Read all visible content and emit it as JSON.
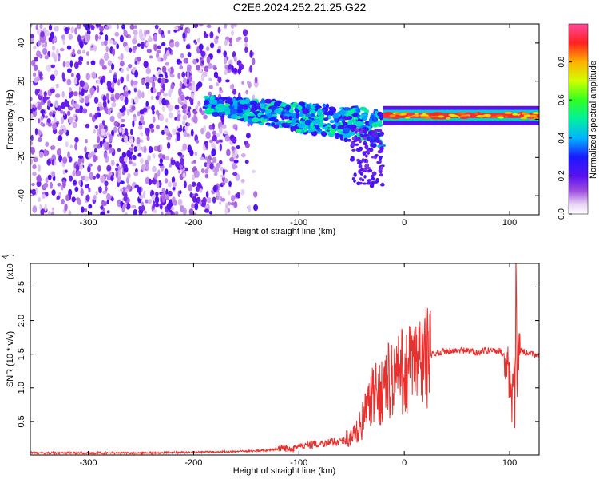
{
  "title": "C2E6.2024.252.21.25.G22",
  "chart_data": [
    {
      "type": "heatmap",
      "xlabel": "Height of straight line (km)",
      "ylabel": "Frequency (Hz)",
      "xlim": [
        -355,
        128
      ],
      "ylim": [
        -50,
        50
      ],
      "x_ticks": [
        -300,
        -200,
        -100,
        0,
        100
      ],
      "x_tick_labels": [
        "-300",
        "-200",
        "-100",
        "0",
        "100"
      ],
      "y_ticks": [
        -40,
        -20,
        0,
        20,
        40
      ],
      "y_tick_labels": [
        "-40",
        "-20",
        "0",
        "20",
        "40"
      ],
      "colorbar": {
        "label": "Normalized spectral amplitude",
        "range": [
          0,
          1
        ],
        "ticks": [
          0.0,
          0.2,
          0.4,
          0.6,
          0.8
        ],
        "tick_labels": [
          "0.0",
          "0.2",
          "0.4",
          "0.6",
          "0.8"
        ]
      },
      "features": [
        {
          "x_range": [
            -355,
            -140
          ],
          "y_range": [
            -50,
            50
          ],
          "amplitude": 0.15
        },
        {
          "x_range": [
            -190,
            -20
          ],
          "y_center_start": 8,
          "y_center_end": -5,
          "amplitude": 0.5
        },
        {
          "x_range": [
            -20,
            128
          ],
          "y_center": 2,
          "amplitude": 0.95
        }
      ]
    },
    {
      "type": "line",
      "xlabel": "Height of straight line (km)",
      "ylabel": "SNR (10 * v/v)",
      "scale_label": "(x10",
      "scale_exponent": "4",
      "xlim": [
        -355,
        128
      ],
      "ylim": [
        0,
        2.85
      ],
      "x_ticks": [
        -300,
        -200,
        -100,
        0,
        100
      ],
      "x_tick_labels": [
        "-300",
        "-200",
        "-100",
        "0",
        "100"
      ],
      "y_ticks": [
        0.5,
        1.0,
        1.5,
        2.0,
        2.5
      ],
      "y_tick_labels": [
        "0.5",
        "1.0",
        "1.5",
        "2.0",
        "2.5"
      ],
      "series": [
        {
          "color": "#e8312e",
          "x": [
            -355,
            -300,
            -250,
            -200,
            -160,
            -130,
            -110,
            -90,
            -75,
            -60,
            -50,
            -45,
            -40,
            -35,
            -30,
            -25,
            -20,
            -15,
            -10,
            -5,
            0,
            5,
            10,
            15,
            20,
            25,
            30,
            40,
            50,
            60,
            70,
            80,
            90,
            95,
            100,
            102,
            104,
            105,
            106,
            107,
            108,
            110,
            115,
            120,
            128
          ],
          "y": [
            0.03,
            0.03,
            0.03,
            0.04,
            0.05,
            0.07,
            0.1,
            0.15,
            0.18,
            0.2,
            0.25,
            0.35,
            0.5,
            0.7,
            0.85,
            0.9,
            1.0,
            1.1,
            1.15,
            1.2,
            1.25,
            1.3,
            1.35,
            1.4,
            1.45,
            1.48,
            1.52,
            1.55,
            1.55,
            1.55,
            1.53,
            1.56,
            1.55,
            1.5,
            1.2,
            0.6,
            1.5,
            0.3,
            2.85,
            1.1,
            1.6,
            1.55,
            1.52,
            1.5,
            1.48
          ]
        }
      ]
    }
  ]
}
